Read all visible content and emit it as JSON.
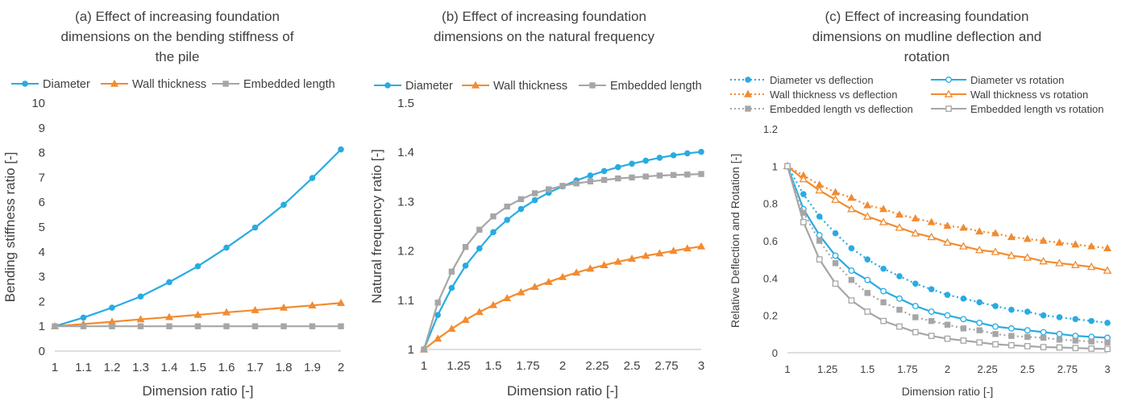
{
  "chart_data": [
    {
      "type": "line",
      "title": "(a) Effect of increasing foundation\ndimensions on the bending stiffness of\nthe pile",
      "xlabel": "Dimension ratio [-]",
      "ylabel": "Bending stiffness ratio [-]",
      "xlim": [
        1,
        2
      ],
      "ylim": [
        0,
        10
      ],
      "xticks": [
        "1",
        "1.1",
        "1.2",
        "1.3",
        "1.4",
        "1.5",
        "1.6",
        "1.7",
        "1.8",
        "1.9",
        "2"
      ],
      "yticks": [
        "0",
        "1",
        "2",
        "3",
        "4",
        "5",
        "6",
        "7",
        "8",
        "9",
        "10"
      ],
      "grid": false,
      "legend_position": "top",
      "series": [
        {
          "name": "Diameter",
          "color": "#29ABE2",
          "marker": "circle",
          "dashed": false,
          "x": [
            1,
            1.1,
            1.2,
            1.3,
            1.4,
            1.5,
            1.6,
            1.7,
            1.8,
            1.9,
            2
          ],
          "y": [
            1,
            1.35,
            1.75,
            2.2,
            2.78,
            3.42,
            4.17,
            4.98,
            5.9,
            6.98,
            8.13
          ]
        },
        {
          "name": "Wall thickness",
          "color": "#F28B30",
          "marker": "triangle",
          "dashed": false,
          "x": [
            1,
            1.1,
            1.2,
            1.3,
            1.4,
            1.5,
            1.6,
            1.7,
            1.8,
            1.9,
            2
          ],
          "y": [
            1,
            1.09,
            1.18,
            1.28,
            1.37,
            1.46,
            1.56,
            1.65,
            1.75,
            1.84,
            1.94
          ]
        },
        {
          "name": "Embedded length",
          "color": "#A6A6A6",
          "marker": "square",
          "dashed": false,
          "x": [
            1,
            1.1,
            1.2,
            1.3,
            1.4,
            1.5,
            1.6,
            1.7,
            1.8,
            1.9,
            2
          ],
          "y": [
            1,
            1,
            1,
            1,
            1,
            1,
            1,
            1,
            1,
            1,
            1
          ]
        }
      ]
    },
    {
      "type": "line",
      "title": "(b) Effect of increasing foundation\ndimensions on the natural frequency",
      "xlabel": "Dimension ratio [-]",
      "ylabel": "Natural frequency ratio [-]",
      "xlim": [
        1,
        3
      ],
      "ylim": [
        1,
        1.5
      ],
      "xticks": [
        "1",
        "1.25",
        "1.5",
        "1.75",
        "2",
        "2.25",
        "2.5",
        "2.75",
        "3"
      ],
      "yticks": [
        "1",
        "1.1",
        "1.2",
        "1.3",
        "1.4",
        "1.5"
      ],
      "grid": false,
      "legend_position": "top",
      "series": [
        {
          "name": "Diameter",
          "color": "#29ABE2",
          "marker": "circle",
          "dashed": false,
          "x": [
            1,
            1.1,
            1.2,
            1.3,
            1.4,
            1.5,
            1.6,
            1.7,
            1.8,
            1.9,
            2,
            2.1,
            2.2,
            2.3,
            2.4,
            2.5,
            2.6,
            2.7,
            2.8,
            2.9,
            3
          ],
          "y": [
            1,
            1.07,
            1.125,
            1.17,
            1.205,
            1.238,
            1.263,
            1.285,
            1.303,
            1.318,
            1.331,
            1.343,
            1.353,
            1.362,
            1.37,
            1.377,
            1.383,
            1.389,
            1.394,
            1.398,
            1.401
          ]
        },
        {
          "name": "Wall thickness",
          "color": "#F28B30",
          "marker": "triangle",
          "dashed": false,
          "x": [
            1,
            1.1,
            1.2,
            1.3,
            1.4,
            1.5,
            1.6,
            1.7,
            1.8,
            1.9,
            2,
            2.1,
            2.2,
            2.3,
            2.4,
            2.5,
            2.6,
            2.7,
            2.8,
            2.9,
            3
          ],
          "y": [
            1,
            1.022,
            1.042,
            1.06,
            1.076,
            1.09,
            1.104,
            1.116,
            1.127,
            1.137,
            1.147,
            1.156,
            1.164,
            1.171,
            1.178,
            1.184,
            1.19,
            1.195,
            1.2,
            1.205,
            1.209
          ]
        },
        {
          "name": "Embedded length",
          "color": "#A6A6A6",
          "marker": "square",
          "dashed": false,
          "x": [
            1,
            1.1,
            1.2,
            1.3,
            1.4,
            1.5,
            1.6,
            1.7,
            1.8,
            1.9,
            2,
            2.1,
            2.2,
            2.3,
            2.4,
            2.5,
            2.6,
            2.7,
            2.8,
            2.9,
            3
          ],
          "y": [
            1,
            1.095,
            1.158,
            1.208,
            1.243,
            1.27,
            1.29,
            1.305,
            1.317,
            1.325,
            1.332,
            1.337,
            1.341,
            1.344,
            1.347,
            1.349,
            1.351,
            1.353,
            1.354,
            1.355,
            1.356
          ]
        }
      ]
    },
    {
      "type": "line",
      "title": "(c) Effect of increasing foundation\ndimensions on mudline deflection and\nrotation",
      "xlabel": "Dimension ratio [-]",
      "ylabel": "Relative Deflection and Rotation [-]",
      "xlim": [
        1,
        3
      ],
      "ylim": [
        0,
        1.2
      ],
      "xticks": [
        "1",
        "1.25",
        "1.5",
        "1.75",
        "2",
        "2.25",
        "2.5",
        "2.75",
        "3"
      ],
      "yticks": [
        "0",
        "0.2",
        "0.4",
        "0.6",
        "0.8",
        "1",
        "1.2"
      ],
      "grid": false,
      "legend_position": "top",
      "series": [
        {
          "name": "Diameter vs deflection",
          "color": "#29ABE2",
          "marker": "circle",
          "dashed": true,
          "x": [
            1,
            1.1,
            1.2,
            1.3,
            1.4,
            1.5,
            1.6,
            1.7,
            1.8,
            1.9,
            2,
            2.1,
            2.2,
            2.3,
            2.4,
            2.5,
            2.6,
            2.7,
            2.8,
            2.9,
            3
          ],
          "y": [
            1,
            0.85,
            0.73,
            0.64,
            0.56,
            0.5,
            0.45,
            0.41,
            0.37,
            0.34,
            0.31,
            0.29,
            0.27,
            0.25,
            0.23,
            0.22,
            0.2,
            0.19,
            0.18,
            0.17,
            0.16
          ]
        },
        {
          "name": "Diameter vs rotation",
          "color": "#29ABE2",
          "marker": "circle-open",
          "dashed": false,
          "x": [
            1,
            1.1,
            1.2,
            1.3,
            1.4,
            1.5,
            1.6,
            1.7,
            1.8,
            1.9,
            2,
            2.1,
            2.2,
            2.3,
            2.4,
            2.5,
            2.6,
            2.7,
            2.8,
            2.9,
            3
          ],
          "y": [
            1,
            0.77,
            0.63,
            0.52,
            0.44,
            0.39,
            0.33,
            0.29,
            0.25,
            0.22,
            0.2,
            0.18,
            0.16,
            0.14,
            0.13,
            0.12,
            0.11,
            0.1,
            0.09,
            0.085,
            0.08
          ]
        },
        {
          "name": "Wall thickness vs deflection",
          "color": "#F28B30",
          "marker": "triangle",
          "dashed": true,
          "x": [
            1,
            1.1,
            1.2,
            1.3,
            1.4,
            1.5,
            1.6,
            1.7,
            1.8,
            1.9,
            2,
            2.1,
            2.2,
            2.3,
            2.4,
            2.5,
            2.6,
            2.7,
            2.8,
            2.9,
            3
          ],
          "y": [
            1,
            0.95,
            0.9,
            0.86,
            0.83,
            0.79,
            0.77,
            0.74,
            0.72,
            0.7,
            0.68,
            0.67,
            0.65,
            0.64,
            0.62,
            0.61,
            0.6,
            0.59,
            0.58,
            0.57,
            0.56
          ]
        },
        {
          "name": "Wall thickness vs rotation",
          "color": "#F28B30",
          "marker": "triangle-open",
          "dashed": false,
          "x": [
            1,
            1.1,
            1.2,
            1.3,
            1.4,
            1.5,
            1.6,
            1.7,
            1.8,
            1.9,
            2,
            2.1,
            2.2,
            2.3,
            2.4,
            2.5,
            2.6,
            2.7,
            2.8,
            2.9,
            3
          ],
          "y": [
            1,
            0.93,
            0.87,
            0.82,
            0.77,
            0.73,
            0.7,
            0.67,
            0.64,
            0.62,
            0.59,
            0.57,
            0.55,
            0.54,
            0.52,
            0.51,
            0.49,
            0.48,
            0.47,
            0.46,
            0.44
          ]
        },
        {
          "name": "Embedded length vs deflection",
          "color": "#A6A6A6",
          "marker": "square",
          "dashed": true,
          "x": [
            1,
            1.1,
            1.2,
            1.3,
            1.4,
            1.5,
            1.6,
            1.7,
            1.8,
            1.9,
            2,
            2.1,
            2.2,
            2.3,
            2.4,
            2.5,
            2.6,
            2.7,
            2.8,
            2.9,
            3
          ],
          "y": [
            1,
            0.75,
            0.6,
            0.48,
            0.39,
            0.32,
            0.27,
            0.23,
            0.19,
            0.17,
            0.15,
            0.13,
            0.12,
            0.1,
            0.09,
            0.085,
            0.08,
            0.07,
            0.065,
            0.06,
            0.055
          ]
        },
        {
          "name": "Embedded length vs rotation",
          "color": "#A6A6A6",
          "marker": "square-open",
          "dashed": false,
          "x": [
            1,
            1.1,
            1.2,
            1.3,
            1.4,
            1.5,
            1.6,
            1.7,
            1.8,
            1.9,
            2,
            2.1,
            2.2,
            2.3,
            2.4,
            2.5,
            2.6,
            2.7,
            2.8,
            2.9,
            3
          ],
          "y": [
            1,
            0.7,
            0.5,
            0.37,
            0.28,
            0.22,
            0.17,
            0.14,
            0.11,
            0.09,
            0.075,
            0.065,
            0.055,
            0.045,
            0.04,
            0.035,
            0.03,
            0.028,
            0.025,
            0.022,
            0.02
          ]
        }
      ]
    }
  ]
}
